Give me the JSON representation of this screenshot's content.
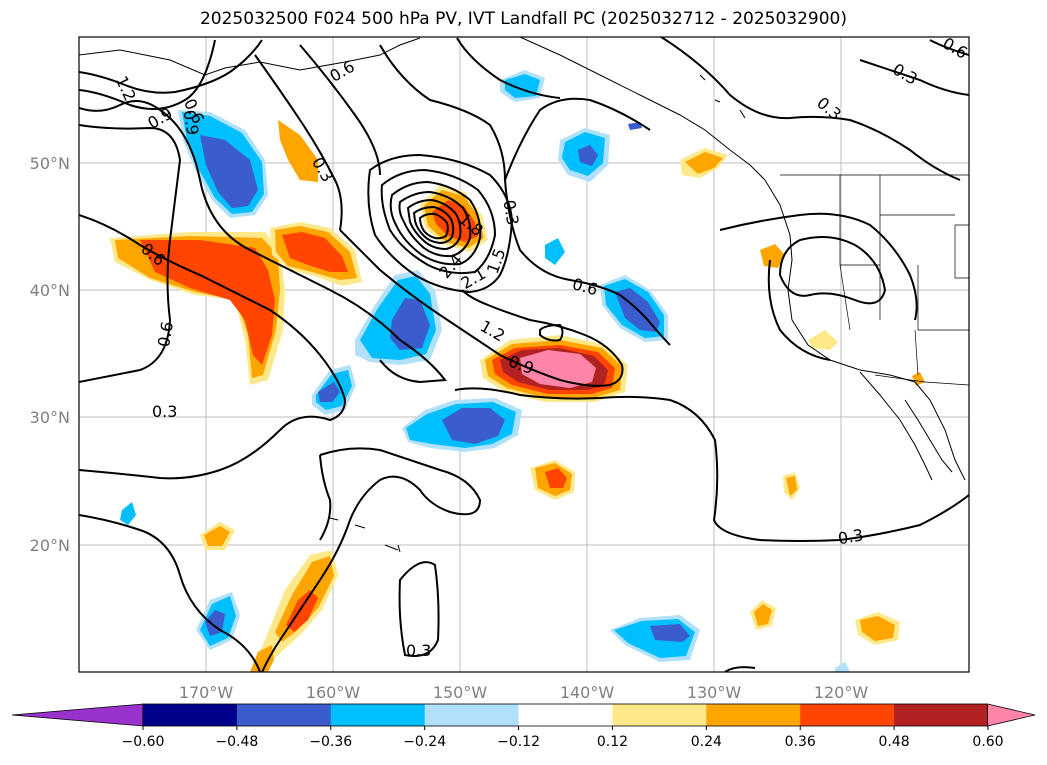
{
  "title": "2025032500 F024 500 hPa PV, IVT Landfall PC (2025032712 - 2025032900)",
  "lon_ticks": [
    "170°W",
    "160°W",
    "150°W",
    "140°W",
    "130°W",
    "120°W"
  ],
  "lat_ticks": [
    "50°N",
    "40°N",
    "30°N",
    "20°N"
  ],
  "colorbar": {
    "ticks": [
      "−0.60",
      "−0.48",
      "−0.36",
      "−0.24",
      "−0.12",
      "0.12",
      "0.24",
      "0.36",
      "0.48",
      "0.60"
    ],
    "colors": [
      "#9932cc",
      "#00008b",
      "#3a5ccc",
      "#00bfff",
      "#b0e0fa",
      "#ffffff",
      "#ffe88a",
      "#ffa500",
      "#ff4500",
      "#b22222",
      "#ff85a8"
    ]
  },
  "contour_labels": [
    "1.2",
    "0.9",
    "0.6",
    "0.6",
    "0.3",
    "0.6",
    "0.6",
    "0.9",
    "0.3",
    "0.3",
    "1.8",
    "2.4",
    "2.1",
    "1.5",
    "1.2",
    "0.9",
    "0.6",
    "0.3",
    "0.3",
    "0.3",
    "0.6",
    "0.3"
  ]
}
